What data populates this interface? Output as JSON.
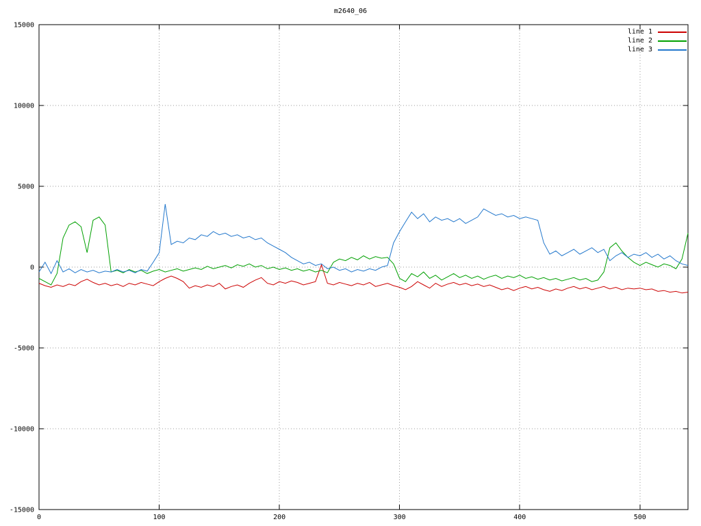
{
  "chart_data": {
    "type": "line",
    "title": "m2640_06",
    "xlabel": "",
    "ylabel": "",
    "xlim": [
      0,
      540
    ],
    "ylim": [
      -15000,
      15000
    ],
    "xticks": [
      0,
      100,
      200,
      300,
      400,
      500
    ],
    "yticks": [
      -15000,
      -10000,
      -5000,
      0,
      5000,
      10000,
      15000
    ],
    "grid": "dotted",
    "legend_position": "top-right",
    "x_start": 0,
    "x_step": 5,
    "series": [
      {
        "name": "line 1",
        "color": "#cc0000",
        "values": [
          -1000,
          -1150,
          -1250,
          -1100,
          -1200,
          -1050,
          -1150,
          -900,
          -750,
          -950,
          -1100,
          -1000,
          -1150,
          -1050,
          -1200,
          -1000,
          -1100,
          -950,
          -1050,
          -1150,
          -900,
          -700,
          -550,
          -700,
          -900,
          -1300,
          -1150,
          -1250,
          -1100,
          -1200,
          -1000,
          -1350,
          -1200,
          -1100,
          -1250,
          -1000,
          -800,
          -650,
          -1000,
          -1100,
          -900,
          -1000,
          -850,
          -950,
          -1100,
          -1000,
          -900,
          150,
          -1000,
          -1100,
          -950,
          -1050,
          -1150,
          -1000,
          -1100,
          -950,
          -1200,
          -1100,
          -1000,
          -1150,
          -1250,
          -1400,
          -1200,
          -900,
          -1100,
          -1300,
          -1000,
          -1200,
          -1050,
          -950,
          -1100,
          -1000,
          -1150,
          -1050,
          -1200,
          -1100,
          -1250,
          -1400,
          -1300,
          -1450,
          -1300,
          -1200,
          -1350,
          -1250,
          -1400,
          -1500,
          -1350,
          -1450,
          -1300,
          -1200,
          -1350,
          -1250,
          -1400,
          -1300,
          -1200,
          -1350,
          -1250,
          -1400,
          -1300,
          -1350,
          -1300,
          -1400,
          -1350,
          -1500,
          -1450,
          -1550,
          -1500,
          -1600,
          -1550
        ]
      },
      {
        "name": "line 2",
        "color": "#00a000",
        "values": [
          -700,
          -900,
          -1100,
          -400,
          1800,
          2600,
          2800,
          2500,
          900,
          2900,
          3100,
          2600,
          -300,
          -200,
          -350,
          -150,
          -300,
          -200,
          -400,
          -250,
          -150,
          -300,
          -200,
          -100,
          -250,
          -150,
          -50,
          -150,
          50,
          -100,
          0,
          100,
          -50,
          150,
          50,
          200,
          0,
          100,
          -100,
          0,
          -150,
          -50,
          -200,
          -100,
          -250,
          -150,
          -300,
          -200,
          -350,
          300,
          500,
          400,
          600,
          450,
          700,
          500,
          650,
          550,
          600,
          200,
          -700,
          -900,
          -400,
          -600,
          -300,
          -700,
          -500,
          -800,
          -600,
          -400,
          -650,
          -500,
          -700,
          -550,
          -750,
          -600,
          -500,
          -700,
          -550,
          -650,
          -500,
          -700,
          -600,
          -750,
          -650,
          -800,
          -700,
          -850,
          -750,
          -650,
          -800,
          -700,
          -900,
          -800,
          -300,
          1200,
          1500,
          1000,
          600,
          300,
          100,
          300,
          150,
          0,
          200,
          100,
          -100,
          500,
          2100
        ]
      },
      {
        "name": "line 3",
        "color": "#2277cc",
        "values": [
          -300,
          300,
          -400,
          400,
          -300,
          -100,
          -350,
          -150,
          -300,
          -200,
          -350,
          -250,
          -300,
          -150,
          -300,
          -200,
          -350,
          -150,
          -250,
          300,
          900,
          3900,
          1400,
          1600,
          1500,
          1800,
          1700,
          2000,
          1900,
          2200,
          2000,
          2100,
          1900,
          2000,
          1800,
          1900,
          1700,
          1800,
          1500,
          1300,
          1100,
          900,
          600,
          400,
          200,
          300,
          100,
          200,
          -100,
          0,
          -200,
          -100,
          -300,
          -150,
          -250,
          -100,
          -200,
          0,
          100,
          1500,
          2200,
          2800,
          3400,
          3000,
          3300,
          2800,
          3100,
          2900,
          3000,
          2800,
          3000,
          2700,
          2900,
          3100,
          3600,
          3400,
          3200,
          3300,
          3100,
          3200,
          3000,
          3100,
          3000,
          2900,
          1500,
          800,
          1000,
          700,
          900,
          1100,
          800,
          1000,
          1200,
          900,
          1100,
          400,
          700,
          900,
          600,
          800,
          700,
          900,
          600,
          800,
          500,
          700,
          400,
          200,
          100
        ]
      }
    ]
  }
}
